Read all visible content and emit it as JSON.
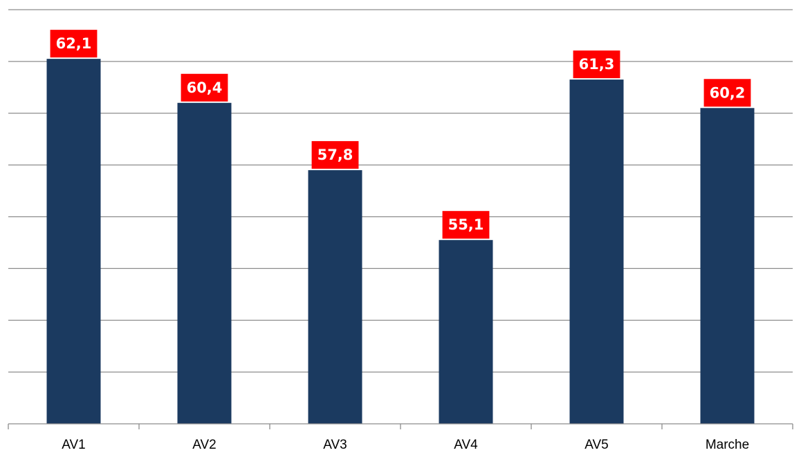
{
  "chart_data": {
    "type": "bar",
    "title": "",
    "xlabel": "",
    "ylabel": "",
    "categories": [
      "AV1",
      "AV2",
      "AV3",
      "AV4",
      "AV5",
      "Marche"
    ],
    "series": [
      {
        "values": [
          62.1,
          60.4,
          57.8,
          55.1,
          61.3,
          60.2
        ],
        "data_labels": [
          "62,1",
          "60,4",
          "57,8",
          "55,1",
          "61,3",
          "60,2"
        ]
      }
    ],
    "ylim": [
      48,
      64
    ],
    "ytick_step": 2,
    "y_axis_labels_visible": false,
    "grid": true,
    "legend": "none",
    "colors": {
      "bar": "#1b3a60",
      "data_label_background": "#ff0000",
      "data_label_text": "#ffffff",
      "gridline": "#8c8c8c",
      "category_text": "#000000"
    }
  }
}
